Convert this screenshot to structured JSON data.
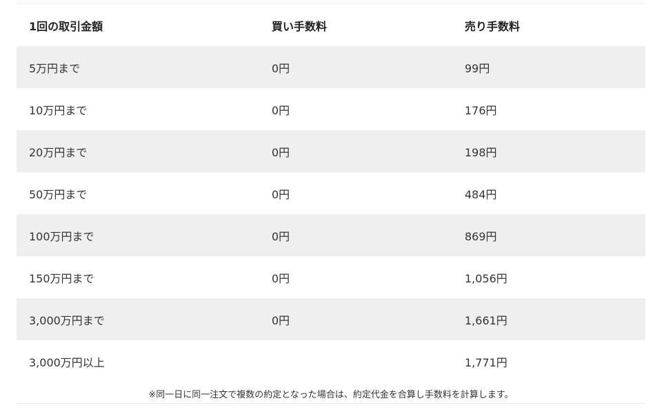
{
  "table": {
    "headers": [
      "1回の取引金額",
      "買い手数料",
      "売り手数料"
    ],
    "rows": [
      [
        "5万円まで",
        "0円",
        "99円"
      ],
      [
        "10万円まで",
        "0円",
        "176円"
      ],
      [
        "20万円まで",
        "0円",
        "198円"
      ],
      [
        "50万円まで",
        "0円",
        "484円"
      ],
      [
        "100万円まで",
        "0円",
        "869円"
      ],
      [
        "150万円まで",
        "0円",
        "1,056円"
      ],
      [
        "3,000万円まで",
        "0円",
        "1,661円"
      ],
      [
        "3,000万円以上",
        "",
        "1,771円"
      ]
    ]
  },
  "footnote": "※同一日に同一注文で複数の約定となった場合は、約定代金を合算し手数料を計算します。"
}
